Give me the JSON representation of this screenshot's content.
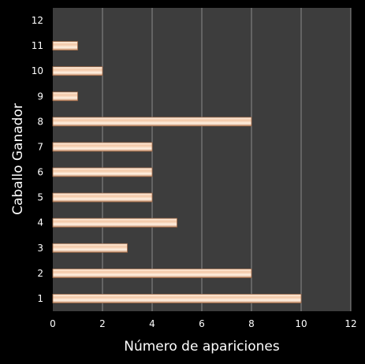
{
  "chart_data": {
    "type": "bar",
    "orientation": "horizontal",
    "title": "",
    "xlabel": "Número de apariciones",
    "ylabel": "Caballo Ganador",
    "categories": [
      "1",
      "2",
      "3",
      "4",
      "5",
      "6",
      "7",
      "8",
      "9",
      "10",
      "11",
      "12"
    ],
    "series": [
      {
        "values": [
          10,
          8,
          3,
          5,
          4,
          4,
          4,
          8,
          1,
          2,
          1,
          0
        ]
      }
    ],
    "xlim": [
      0,
      12
    ],
    "xticks": [
      "0",
      "2",
      "4",
      "6",
      "8",
      "10",
      "12"
    ],
    "grid": "vertical",
    "legend": "none",
    "colors": {
      "background": "#000000",
      "plot_area": "#3d3d3d",
      "grid": "#8c8c8c",
      "bar_light": "#fff2e4",
      "bar_mid": "#f3c7a6",
      "bar_dark": "#c9906b",
      "bar_edge": "#a06a48",
      "text": "#ffffff"
    }
  }
}
